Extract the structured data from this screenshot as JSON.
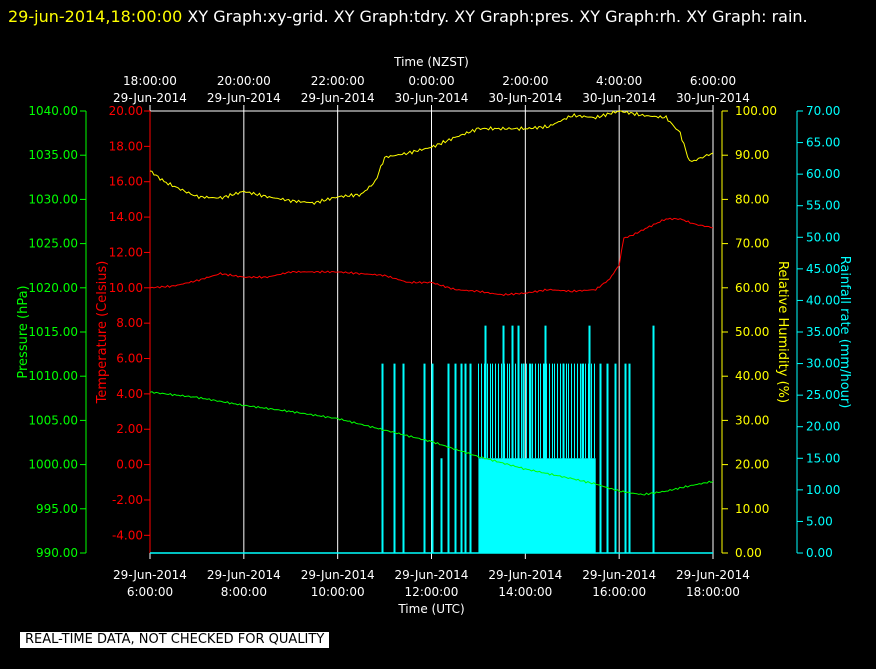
{
  "header": {
    "timestamp": "29-jun-2014,18:00:00",
    "title": "XY Graph:xy-grid.  XY Graph:tdry.  XY Graph:pres.  XY Graph:rh.  XY Graph: rain."
  },
  "disclaimer": "REAL-TIME DATA, NOT CHECKED FOR QUALITY",
  "colors": {
    "background": "#000000",
    "grid": "#ffffff",
    "temperature": "#ff0000",
    "pressure": "#00ff00",
    "humidity": "#ffff00",
    "rainfall": "#00ffff"
  },
  "chart_data": {
    "type": "line",
    "grid": true,
    "top_axis": {
      "label": "Time (NZST)",
      "ticks": [
        [
          "18:00:00",
          "29-Jun-2014"
        ],
        [
          "20:00:00",
          "29-Jun-2014"
        ],
        [
          "22:00:00",
          "29-Jun-2014"
        ],
        [
          "0:00:00",
          "30-Jun-2014"
        ],
        [
          "2:00:00",
          "30-Jun-2014"
        ],
        [
          "4:00:00",
          "30-Jun-2014"
        ],
        [
          "6:00:00",
          "30-Jun-2014"
        ]
      ]
    },
    "bottom_axis": {
      "label": "Time (UTC)",
      "range_hours": [
        6,
        18
      ],
      "tick_hours": [
        6,
        8,
        10,
        12,
        14,
        16,
        18
      ],
      "ticks": [
        [
          "29-Jun-2014",
          "6:00:00"
        ],
        [
          "29-Jun-2014",
          "8:00:00"
        ],
        [
          "29-Jun-2014",
          "10:00:00"
        ],
        [
          "29-Jun-2014",
          "12:00:00"
        ],
        [
          "29-Jun-2014",
          "14:00:00"
        ],
        [
          "29-Jun-2014",
          "16:00:00"
        ],
        [
          "29-Jun-2014",
          "18:00:00"
        ]
      ]
    },
    "axes": {
      "pressure": {
        "label": "Pressure (hPa)",
        "range": [
          990,
          1040
        ],
        "ticks": [
          "990.00",
          "995.00",
          "1000.00",
          "1005.00",
          "1010.00",
          "1015.00",
          "1020.00",
          "1025.00",
          "1030.00",
          "1035.00",
          "1040.00"
        ]
      },
      "temperature": {
        "label": "Temperature (Celsius)",
        "range": [
          -5,
          20
        ],
        "ticks": [
          "-4.00",
          "-2.00",
          "0.00",
          "2.00",
          "4.00",
          "6.00",
          "8.00",
          "10.00",
          "12.00",
          "14.00",
          "16.00",
          "18.00",
          "20.00"
        ]
      },
      "humidity": {
        "label": "Relative Humidity (%)",
        "range": [
          0,
          100
        ],
        "ticks": [
          "0.00",
          "10.00",
          "20.00",
          "30.00",
          "40.00",
          "50.00",
          "60.00",
          "70.00",
          "80.00",
          "90.00",
          "100.00"
        ]
      },
      "rainfall": {
        "label": "Rainfall rate (mm/hour)",
        "range": [
          0,
          70
        ],
        "ticks": [
          "0.00",
          "5.00",
          "10.00",
          "15.00",
          "20.00",
          "25.00",
          "30.00",
          "35.00",
          "40.00",
          "45.00",
          "50.00",
          "55.00",
          "60.00",
          "65.00",
          "70.00"
        ]
      }
    },
    "series": [
      {
        "name": "tdry",
        "axis": "temperature",
        "points": [
          [
            6.0,
            10.0
          ],
          [
            6.5,
            10.1
          ],
          [
            7.0,
            10.4
          ],
          [
            7.5,
            10.8
          ],
          [
            8.0,
            10.6
          ],
          [
            8.5,
            10.6
          ],
          [
            9.0,
            10.9
          ],
          [
            9.5,
            10.9
          ],
          [
            10.0,
            10.9
          ],
          [
            10.5,
            10.8
          ],
          [
            11.0,
            10.7
          ],
          [
            11.5,
            10.3
          ],
          [
            12.0,
            10.3
          ],
          [
            12.5,
            9.9
          ],
          [
            13.0,
            9.8
          ],
          [
            13.5,
            9.6
          ],
          [
            14.0,
            9.7
          ],
          [
            14.5,
            9.9
          ],
          [
            15.0,
            9.8
          ],
          [
            15.5,
            9.9
          ],
          [
            15.8,
            10.5
          ],
          [
            16.0,
            11.3
          ],
          [
            16.1,
            12.8
          ],
          [
            16.3,
            13.0
          ],
          [
            16.6,
            13.4
          ],
          [
            17.0,
            13.9
          ],
          [
            17.3,
            13.9
          ],
          [
            17.6,
            13.6
          ],
          [
            18.0,
            13.4
          ]
        ]
      },
      {
        "name": "pres",
        "axis": "pressure",
        "points": [
          [
            6.0,
            1008.2
          ],
          [
            7.0,
            1007.6
          ],
          [
            8.0,
            1006.7
          ],
          [
            9.0,
            1006.0
          ],
          [
            10.0,
            1005.2
          ],
          [
            11.0,
            1003.9
          ],
          [
            12.0,
            1002.6
          ],
          [
            13.0,
            1000.9
          ],
          [
            14.0,
            999.5
          ],
          [
            15.0,
            998.4
          ],
          [
            15.5,
            997.8
          ],
          [
            16.0,
            997.0
          ],
          [
            16.5,
            996.6
          ],
          [
            17.0,
            997.0
          ],
          [
            17.5,
            997.6
          ],
          [
            18.0,
            998.1
          ]
        ]
      },
      {
        "name": "rh",
        "axis": "humidity",
        "points": [
          [
            6.0,
            86.5
          ],
          [
            6.3,
            84.0
          ],
          [
            7.0,
            80.6
          ],
          [
            7.5,
            80.3
          ],
          [
            8.0,
            81.8
          ],
          [
            8.5,
            80.6
          ],
          [
            9.0,
            79.7
          ],
          [
            9.5,
            79.2
          ],
          [
            10.0,
            80.6
          ],
          [
            10.5,
            81.1
          ],
          [
            10.8,
            84.0
          ],
          [
            11.0,
            89.5
          ],
          [
            11.5,
            90.5
          ],
          [
            12.0,
            91.8
          ],
          [
            12.5,
            94.0
          ],
          [
            13.0,
            96.0
          ],
          [
            14.0,
            96.0
          ],
          [
            14.5,
            96.5
          ],
          [
            15.0,
            99.0
          ],
          [
            15.5,
            98.5
          ],
          [
            16.0,
            100.0
          ],
          [
            16.5,
            99.0
          ],
          [
            17.0,
            98.5
          ],
          [
            17.3,
            95.0
          ],
          [
            17.5,
            88.5
          ],
          [
            17.6,
            88.8
          ],
          [
            18.0,
            90.5
          ]
        ]
      },
      {
        "name": "rain",
        "axis": "rainfall",
        "type": "bars",
        "baseline": 0,
        "full_dense_range": [
          13.0,
          15.5
        ],
        "bar_groups": [
          {
            "value": 15,
            "hours": [
              10.95,
              11.2,
              11.4,
              11.85,
              12.0,
              12.2,
              12.35,
              12.5,
              12.62,
              12.72,
              12.82,
              13.95,
              14.4,
              14.8,
              15.75,
              16.12,
              16.22,
              16.72
            ]
          },
          {
            "value": 30,
            "hours": [
              10.95,
              11.2,
              11.4,
              11.85,
              12.0,
              12.35,
              12.5,
              12.62,
              12.72,
              12.82,
              13.95,
              14.1,
              14.4,
              14.8,
              15.2,
              15.6,
              15.75,
              15.92,
              16.12,
              16.22,
              16.72
            ]
          },
          {
            "value": 36,
            "hours": [
              13.15,
              13.52,
              13.72,
              13.85,
              14.42,
              15.35,
              16.72
            ]
          }
        ]
      }
    ]
  }
}
